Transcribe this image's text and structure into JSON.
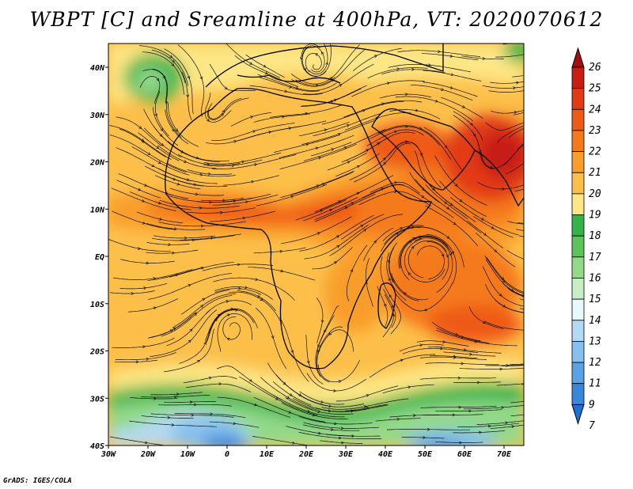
{
  "title": "WBPT [C] and Sreamline at 400hPa, VT: 2020070612",
  "credit": "GrADS: IGES/COLA",
  "map": {
    "lat_labels": [
      "40N",
      "30N",
      "20N",
      "10N",
      "EQ",
      "10S",
      "20S",
      "30S",
      "40S"
    ],
    "lon_labels": [
      "30W",
      "20W",
      "10W",
      "0",
      "10E",
      "20E",
      "30E",
      "40E",
      "50E",
      "60E",
      "70E"
    ]
  },
  "colorbar": {
    "labels": [
      "26",
      "25",
      "24",
      "23",
      "22",
      "21",
      "20",
      "19",
      "18",
      "17",
      "16",
      "15",
      "14",
      "13",
      "12",
      "11",
      "9",
      "7"
    ],
    "colors": [
      "#a50e0e",
      "#c81e12",
      "#e23a14",
      "#ef5a18",
      "#f57a1e",
      "#f99d2c",
      "#fcc04a",
      "#fde685",
      "#34b34a",
      "#5bc55c",
      "#93d98a",
      "#c7efc6",
      "#e8f9fb",
      "#b3daf5",
      "#86c0ee",
      "#5aa2e6",
      "#3887dd",
      "#1f6fd4"
    ]
  },
  "colors": {
    "frame": "#000000",
    "coast": "#1a1a1a",
    "stream": "#111111"
  }
}
